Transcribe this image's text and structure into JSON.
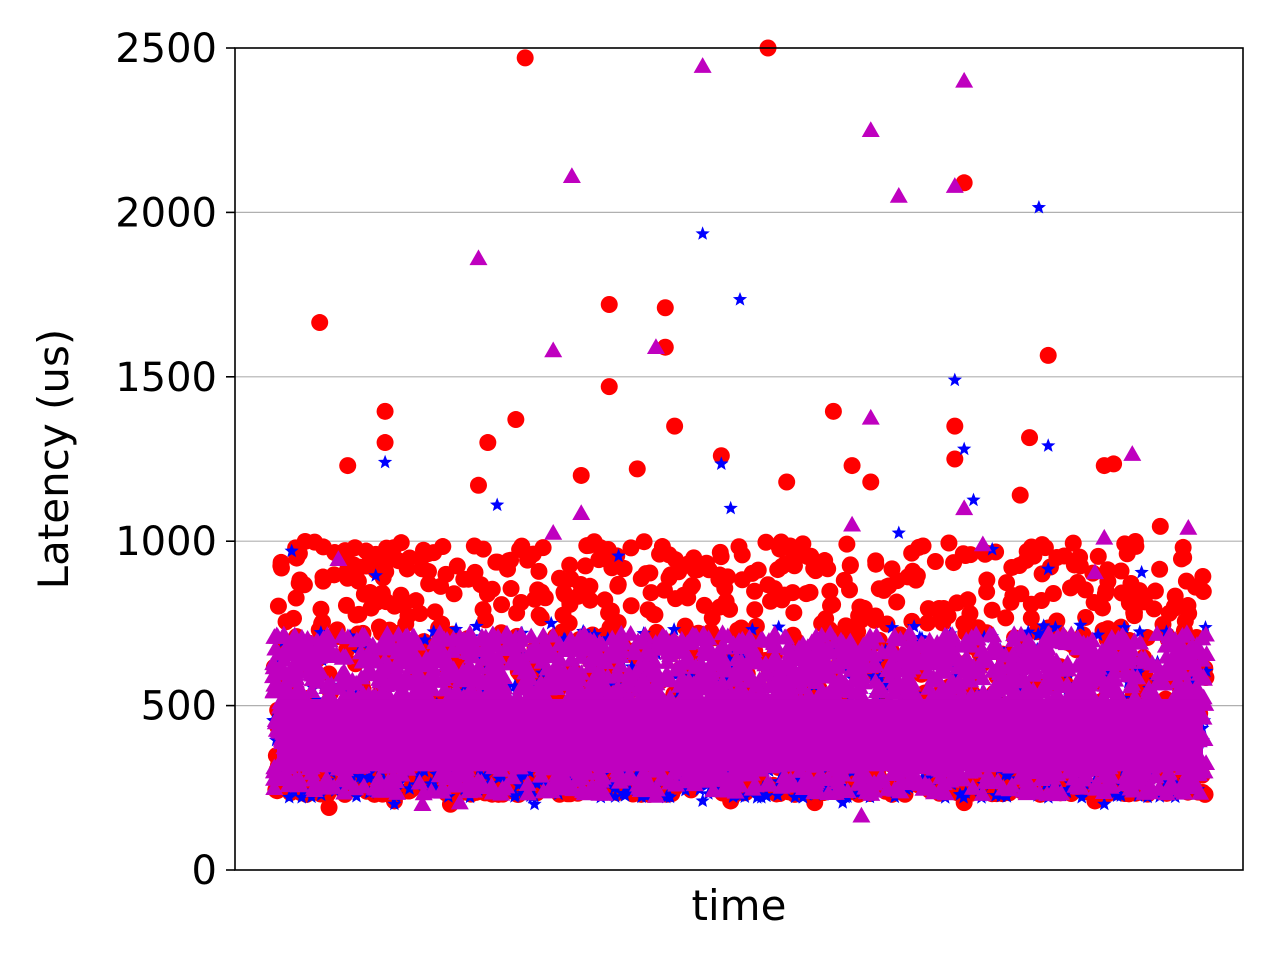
{
  "chart_data": {
    "type": "scatter",
    "xlabel": "time",
    "ylabel": "Latency (us)",
    "ylim": [
      0,
      2500
    ],
    "yticks": [
      0,
      500,
      1000,
      1500,
      2000,
      2500
    ],
    "xticks": [],
    "grid": "horizontal",
    "x_range": [
      0,
      1
    ],
    "series": [
      {
        "marker": "circle",
        "color": "#ff0000",
        "bulk": {
          "x_range": [
            0.0,
            1.0
          ],
          "y_low": 230,
          "y_high": 1000
        },
        "outliers": [
          {
            "x": 0.05,
            "y": 1665
          },
          {
            "x": 0.27,
            "y": 2470
          },
          {
            "x": 0.53,
            "y": 2500
          },
          {
            "x": 0.36,
            "y": 1720
          },
          {
            "x": 0.42,
            "y": 1710
          },
          {
            "x": 0.42,
            "y": 1590
          },
          {
            "x": 0.36,
            "y": 1470
          },
          {
            "x": 0.43,
            "y": 1350
          },
          {
            "x": 0.74,
            "y": 2090
          },
          {
            "x": 0.83,
            "y": 1565
          },
          {
            "x": 0.6,
            "y": 1395
          },
          {
            "x": 0.73,
            "y": 1350
          },
          {
            "x": 0.12,
            "y": 1395
          },
          {
            "x": 0.26,
            "y": 1370
          },
          {
            "x": 0.81,
            "y": 1315
          },
          {
            "x": 0.12,
            "y": 1300
          },
          {
            "x": 0.23,
            "y": 1300
          },
          {
            "x": 0.73,
            "y": 1250
          },
          {
            "x": 0.62,
            "y": 1230
          },
          {
            "x": 0.08,
            "y": 1230
          },
          {
            "x": 0.39,
            "y": 1220
          },
          {
            "x": 0.48,
            "y": 1260
          },
          {
            "x": 0.89,
            "y": 1230
          },
          {
            "x": 0.9,
            "y": 1235
          },
          {
            "x": 0.95,
            "y": 1045
          },
          {
            "x": 0.11,
            "y": 960
          },
          {
            "x": 0.22,
            "y": 1170
          },
          {
            "x": 0.33,
            "y": 1200
          },
          {
            "x": 0.55,
            "y": 1180
          },
          {
            "x": 0.64,
            "y": 1180
          },
          {
            "x": 0.8,
            "y": 1140
          },
          {
            "x": 0.03,
            "y": 235
          },
          {
            "x": 0.06,
            "y": 190
          },
          {
            "x": 0.13,
            "y": 210
          },
          {
            "x": 0.19,
            "y": 200
          },
          {
            "x": 0.49,
            "y": 210
          },
          {
            "x": 0.58,
            "y": 205
          },
          {
            "x": 0.74,
            "y": 205
          },
          {
            "x": 0.88,
            "y": 210
          }
        ]
      },
      {
        "marker": "star",
        "color": "#0000ff",
        "bulk": {
          "x_range": [
            0.0,
            1.0
          ],
          "y_low": 220,
          "y_high": 750
        },
        "outliers": [
          {
            "x": 0.46,
            "y": 1935
          },
          {
            "x": 0.5,
            "y": 1735
          },
          {
            "x": 0.82,
            "y": 2015
          },
          {
            "x": 0.73,
            "y": 1490
          },
          {
            "x": 0.83,
            "y": 1290
          },
          {
            "x": 0.74,
            "y": 1280
          },
          {
            "x": 0.12,
            "y": 1240
          },
          {
            "x": 0.48,
            "y": 1235
          },
          {
            "x": 0.75,
            "y": 1125
          },
          {
            "x": 0.24,
            "y": 1110
          },
          {
            "x": 0.49,
            "y": 1100
          },
          {
            "x": 0.67,
            "y": 1025
          },
          {
            "x": 0.02,
            "y": 970
          },
          {
            "x": 0.37,
            "y": 955
          },
          {
            "x": 0.77,
            "y": 975
          },
          {
            "x": 0.93,
            "y": 905
          },
          {
            "x": 0.11,
            "y": 895
          },
          {
            "x": 0.83,
            "y": 915
          },
          {
            "x": 0.13,
            "y": 200
          },
          {
            "x": 0.28,
            "y": 200
          },
          {
            "x": 0.46,
            "y": 210
          },
          {
            "x": 0.61,
            "y": 205
          },
          {
            "x": 0.89,
            "y": 200
          }
        ]
      },
      {
        "marker": "triangle",
        "color": "#bf00bf",
        "bulk": {
          "x_range": [
            0.0,
            1.0
          ],
          "y_low": 230,
          "y_high": 720
        },
        "outliers": [
          {
            "x": 0.46,
            "y": 2445
          },
          {
            "x": 0.74,
            "y": 2400
          },
          {
            "x": 0.64,
            "y": 2250
          },
          {
            "x": 0.32,
            "y": 2110
          },
          {
            "x": 0.73,
            "y": 2080
          },
          {
            "x": 0.67,
            "y": 2050
          },
          {
            "x": 0.22,
            "y": 1860
          },
          {
            "x": 0.3,
            "y": 1580
          },
          {
            "x": 0.41,
            "y": 1590
          },
          {
            "x": 0.64,
            "y": 1375
          },
          {
            "x": 0.92,
            "y": 1265
          },
          {
            "x": 0.98,
            "y": 1040
          },
          {
            "x": 0.74,
            "y": 1100
          },
          {
            "x": 0.3,
            "y": 1025
          },
          {
            "x": 0.62,
            "y": 1050
          },
          {
            "x": 0.33,
            "y": 1085
          },
          {
            "x": 0.76,
            "y": 990
          },
          {
            "x": 0.89,
            "y": 1010
          },
          {
            "x": 0.07,
            "y": 945
          },
          {
            "x": 0.88,
            "y": 905
          },
          {
            "x": 0.63,
            "y": 165
          },
          {
            "x": 0.16,
            "y": 200
          },
          {
            "x": 0.2,
            "y": 205
          },
          {
            "x": 0.41,
            "y": 225
          }
        ]
      }
    ]
  }
}
